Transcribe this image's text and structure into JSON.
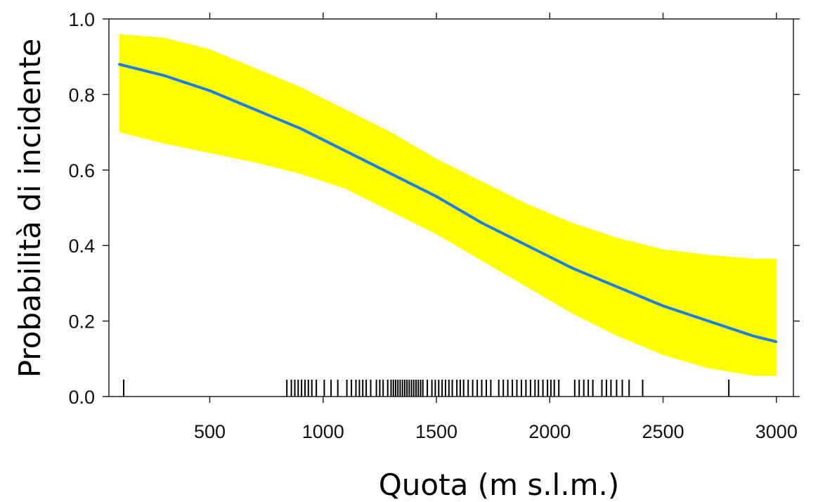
{
  "chart_data": {
    "type": "line",
    "title": "",
    "xlabel": "Quota (m s.l.m.)",
    "ylabel": "Probabilità di incidente",
    "xlim": [
      55,
      3075
    ],
    "ylim": [
      0.0,
      1.0
    ],
    "x_ticks": [
      500,
      1000,
      1500,
      2000,
      2500,
      3000
    ],
    "x_tick_labels": [
      "500",
      "1000",
      "1500",
      "2000",
      "2500",
      "3000"
    ],
    "y_ticks": [
      0.0,
      0.2,
      0.4,
      0.6,
      0.8,
      1.0
    ],
    "y_tick_labels": [
      "0.0",
      "0.2",
      "0.4",
      "0.6",
      "0.8",
      "1.0"
    ],
    "grid": false,
    "series": [
      {
        "x": [
          100,
          300,
          500,
          700,
          900,
          1100,
          1300,
          1500,
          1700,
          1900,
          2100,
          2300,
          2500,
          2700,
          2900,
          3000
        ],
        "y": [
          0.88,
          0.85,
          0.81,
          0.76,
          0.71,
          0.65,
          0.59,
          0.53,
          0.46,
          0.4,
          0.34,
          0.29,
          0.24,
          0.2,
          0.16,
          0.145
        ],
        "color": "#1f7fe0"
      }
    ],
    "confidence_band": {
      "x": [
        100,
        300,
        500,
        700,
        900,
        1100,
        1300,
        1500,
        1700,
        1900,
        2100,
        2300,
        2500,
        2700,
        2900,
        3000
      ],
      "lower": [
        0.7,
        0.67,
        0.645,
        0.62,
        0.59,
        0.55,
        0.49,
        0.43,
        0.36,
        0.29,
        0.22,
        0.16,
        0.11,
        0.075,
        0.055,
        0.055
      ],
      "upper": [
        0.96,
        0.95,
        0.92,
        0.87,
        0.82,
        0.76,
        0.7,
        0.63,
        0.57,
        0.51,
        0.46,
        0.42,
        0.39,
        0.375,
        0.365,
        0.365
      ],
      "color": "#ffff00"
    },
    "rug": [
      120,
      840,
      860,
      875,
      890,
      905,
      920,
      935,
      950,
      970,
      1005,
      1035,
      1065,
      1105,
      1125,
      1145,
      1160,
      1175,
      1190,
      1210,
      1235,
      1250,
      1265,
      1285,
      1300,
      1310,
      1320,
      1330,
      1340,
      1350,
      1360,
      1370,
      1380,
      1390,
      1400,
      1410,
      1420,
      1430,
      1440,
      1460,
      1480,
      1495,
      1510,
      1525,
      1540,
      1555,
      1570,
      1590,
      1605,
      1620,
      1640,
      1660,
      1680,
      1700,
      1720,
      1740,
      1775,
      1795,
      1815,
      1835,
      1855,
      1875,
      1895,
      1915,
      1935,
      1950,
      1970,
      1990,
      2005,
      2020,
      2040,
      2110,
      2130,
      2150,
      2170,
      2190,
      2230,
      2250,
      2270,
      2295,
      2320,
      2350,
      2410,
      2790
    ]
  }
}
